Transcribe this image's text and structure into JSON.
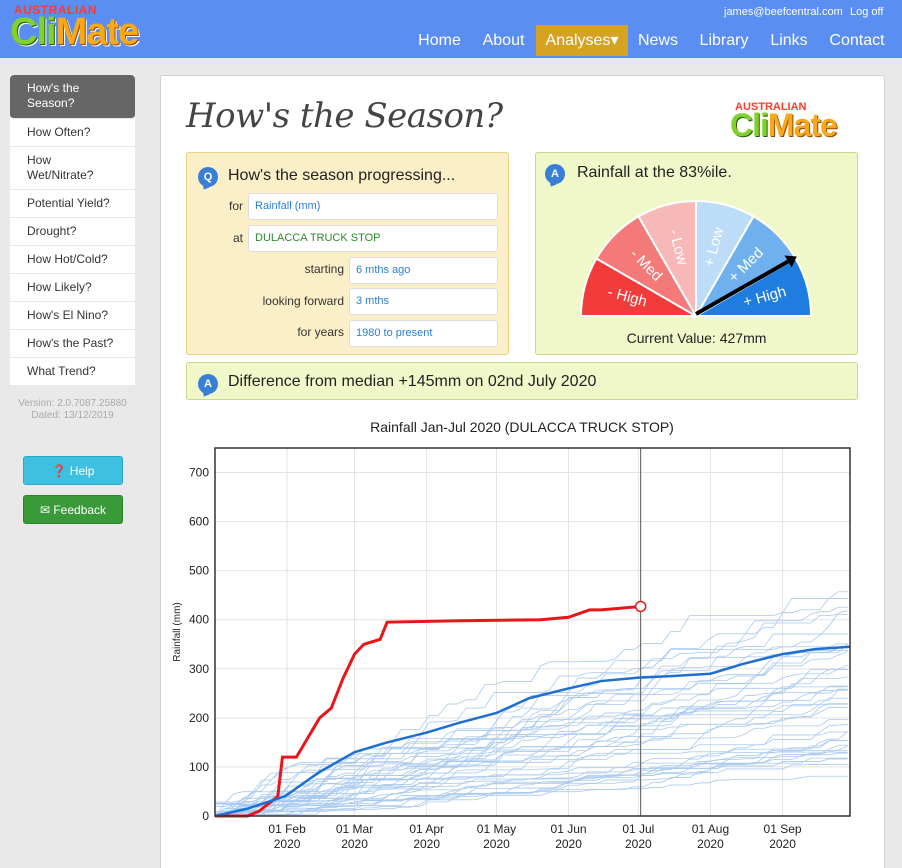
{
  "header": {
    "logo_small": "AUSTRALIAN",
    "logo_cli": "Cli",
    "logo_mate": "Mate",
    "user_email": "james@beefcentral.com",
    "logout": "Log off",
    "nav": [
      "Home",
      "About",
      "Analyses▾",
      "News",
      "Library",
      "Links",
      "Contact"
    ],
    "active_nav": "Analyses▾"
  },
  "sidebar": {
    "items": [
      "How's the Season?",
      "How Often?",
      "How Wet/Nitrate?",
      "Potential Yield?",
      "Drought?",
      "How Hot/Cold?",
      "How Likely?",
      "How's El Nino?",
      "How's the Past?",
      "What Trend?"
    ],
    "active_index": 0,
    "version": "Version: 2.0.7087.25880",
    "dated": "Dated: 13/12/2019",
    "help_label": "Help",
    "feedback_label": "Feedback"
  },
  "main": {
    "title": "How's the Season?",
    "question": {
      "badge": "Q",
      "heading": "How's the season progressing...",
      "fields": [
        {
          "label": "for",
          "value": "Rainfall (mm)"
        },
        {
          "label": "at",
          "value": "DULACCA TRUCK STOP"
        },
        {
          "label": "starting",
          "value": "6 mths ago"
        },
        {
          "label": "looking forward",
          "value": "3 mths"
        },
        {
          "label": "for years",
          "value": "1980 to present"
        }
      ]
    },
    "answer": {
      "badge": "A",
      "heading": "Rainfall at the 83%ile.",
      "gauge_labels": [
        "- High",
        "- Med",
        "- Low",
        "+ Low",
        "+ Med",
        "+ High"
      ],
      "gauge_colors": [
        "#f23b3b",
        "#f47a7a",
        "#f7b8b8",
        "#bcdcf7",
        "#6fb0ef",
        "#1f7de0"
      ],
      "gauge_value_fraction": 0.83,
      "current_value": "Current Value: 427mm"
    },
    "difference": {
      "badge": "A",
      "text": "Difference from median +145mm on 02nd July 2020"
    }
  },
  "chart_data": {
    "type": "line",
    "title": "Rainfall Jan-Jul 2020 (DULACCA TRUCK STOP)",
    "xlabel": "",
    "ylabel": "Rainfall (mm)",
    "ylim": [
      0,
      750
    ],
    "yticks": [
      0,
      100,
      200,
      300,
      400,
      500,
      600,
      700
    ],
    "xlim": [
      "2020-01-01",
      "2020-09-30"
    ],
    "xticks": [
      {
        "date": "2020-02-01",
        "label1": "01 Feb",
        "label2": "2020"
      },
      {
        "date": "2020-03-01",
        "label1": "01 Mar",
        "label2": "2020"
      },
      {
        "date": "2020-04-01",
        "label1": "01 Apr",
        "label2": "2020"
      },
      {
        "date": "2020-05-01",
        "label1": "01 May",
        "label2": "2020"
      },
      {
        "date": "2020-06-01",
        "label1": "01 Jun",
        "label2": "2020"
      },
      {
        "date": "2020-07-01",
        "label1": "01 Jul",
        "label2": "2020"
      },
      {
        "date": "2020-08-01",
        "label1": "01 Aug",
        "label2": "2020"
      },
      {
        "date": "2020-09-01",
        "label1": "01 Sep",
        "label2": "2020"
      }
    ],
    "grid": true,
    "current_marker": {
      "date": "2020-07-02",
      "y": 427
    },
    "series": [
      {
        "color": "#e8161b",
        "points": [
          [
            "2020-01-01",
            0
          ],
          [
            "2020-01-15",
            0
          ],
          [
            "2020-01-20",
            10
          ],
          [
            "2020-01-28",
            40
          ],
          [
            "2020-01-30",
            120
          ],
          [
            "2020-02-05",
            120
          ],
          [
            "2020-02-10",
            160
          ],
          [
            "2020-02-15",
            200
          ],
          [
            "2020-02-20",
            220
          ],
          [
            "2020-02-25",
            280
          ],
          [
            "2020-03-01",
            330
          ],
          [
            "2020-03-05",
            350
          ],
          [
            "2020-03-12",
            360
          ],
          [
            "2020-03-15",
            395
          ],
          [
            "2020-04-15",
            398
          ],
          [
            "2020-05-20",
            400
          ],
          [
            "2020-06-01",
            405
          ],
          [
            "2020-06-10",
            420
          ],
          [
            "2020-06-15",
            420
          ],
          [
            "2020-07-02",
            427
          ]
        ]
      },
      {
        "color": "#1f6fd0",
        "points": [
          [
            "2020-01-01",
            0
          ],
          [
            "2020-01-15",
            15
          ],
          [
            "2020-01-31",
            40
          ],
          [
            "2020-02-15",
            90
          ],
          [
            "2020-03-01",
            130
          ],
          [
            "2020-03-15",
            150
          ],
          [
            "2020-04-01",
            170
          ],
          [
            "2020-04-15",
            190
          ],
          [
            "2020-05-01",
            210
          ],
          [
            "2020-05-15",
            240
          ],
          [
            "2020-06-01",
            260
          ],
          [
            "2020-06-15",
            275
          ],
          [
            "2020-07-01",
            282
          ],
          [
            "2020-07-15",
            285
          ],
          [
            "2020-08-01",
            290
          ],
          [
            "2020-08-15",
            310
          ],
          [
            "2020-09-01",
            330
          ],
          [
            "2020-09-15",
            340
          ],
          [
            "2020-09-30",
            345
          ]
        ]
      }
    ],
    "background_series_count": 40
  }
}
